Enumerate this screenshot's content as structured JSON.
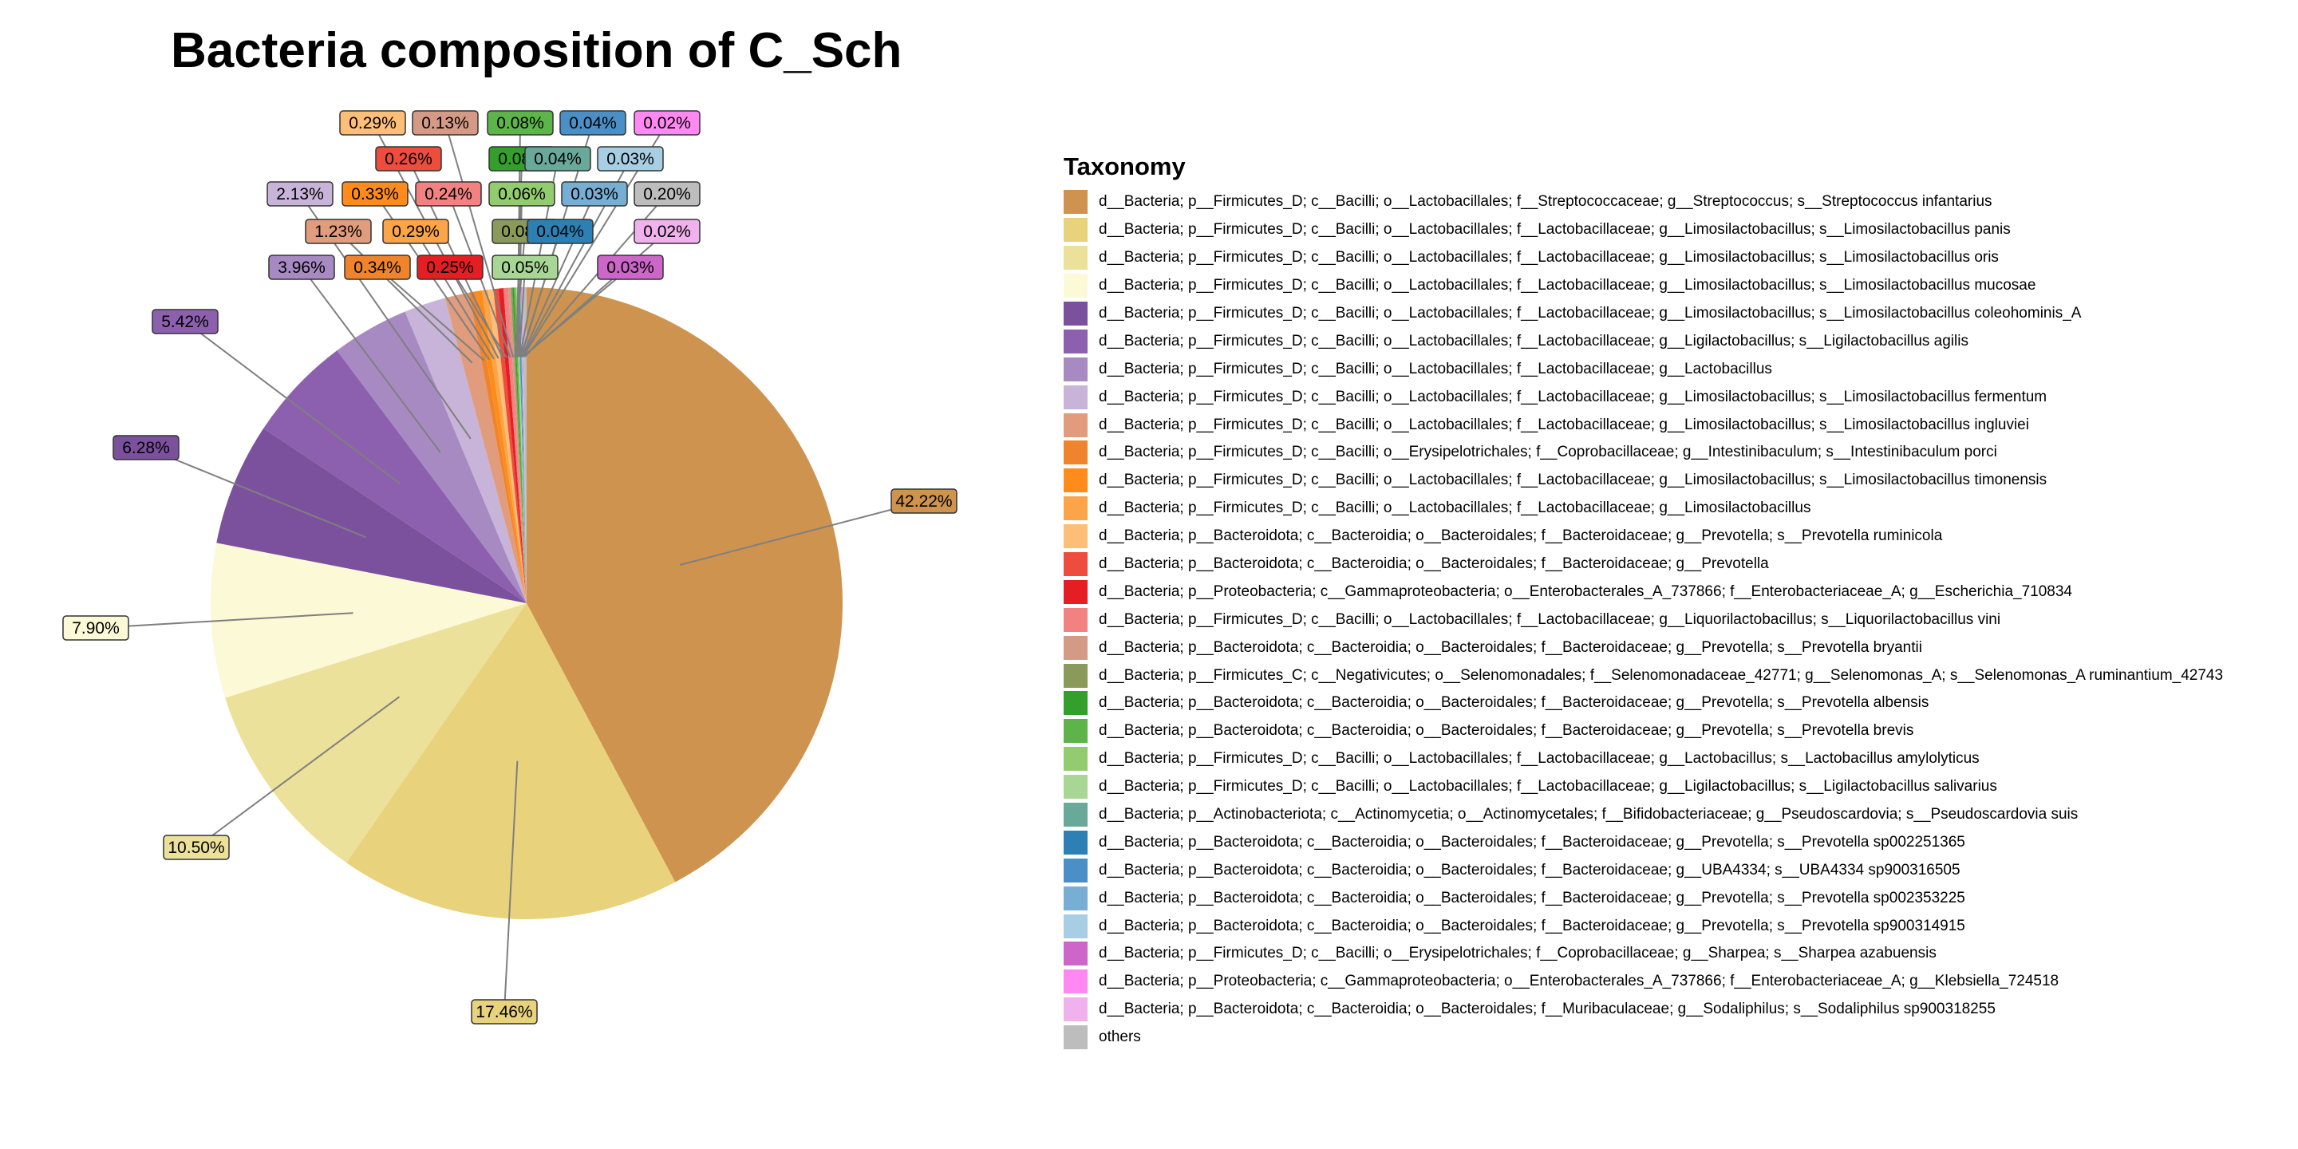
{
  "chart_data": {
    "type": "pie",
    "title": "Bacteria composition of C_Sch",
    "legend_title": "Taxonomy",
    "legend_position": "right",
    "slices": [
      {
        "label": "d__Bacteria; p__Firmicutes_D; c__Bacilli; o__Lactobacillales; f__Streptococcaceae; g__Streptococcus; s__Streptococcus infantarius",
        "value": 42.22,
        "display": "42.22%",
        "color": "#CD934F"
      },
      {
        "label": "d__Bacteria; p__Firmicutes_D; c__Bacilli; o__Lactobacillales; f__Lactobacillaceae; g__Limosilactobacillus; s__Limosilactobacillus panis",
        "value": 17.46,
        "display": "17.46%",
        "color": "#E8D27C"
      },
      {
        "label": "d__Bacteria; p__Firmicutes_D; c__Bacilli; o__Lactobacillales; f__Lactobacillaceae; g__Limosilactobacillus; s__Limosilactobacillus oris",
        "value": 10.5,
        "display": "10.50%",
        "color": "#EBE19A"
      },
      {
        "label": "d__Bacteria; p__Firmicutes_D; c__Bacilli; o__Lactobacillales; f__Lactobacillaceae; g__Limosilactobacillus; s__Limosilactobacillus mucosae",
        "value": 7.9,
        "display": "7.90%",
        "color": "#FBF9D6"
      },
      {
        "label": "d__Bacteria; p__Firmicutes_D; c__Bacilli; o__Lactobacillales; f__Lactobacillaceae; g__Limosilactobacillus; s__Limosilactobacillus coleohominis_A",
        "value": 6.28,
        "display": "6.28%",
        "color": "#7B519D"
      },
      {
        "label": "d__Bacteria; p__Firmicutes_D; c__Bacilli; o__Lactobacillales; f__Lactobacillaceae; g__Ligilactobacillus; s__Ligilactobacillus agilis",
        "value": 5.42,
        "display": "5.42%",
        "color": "#8C60AE"
      },
      {
        "label": "d__Bacteria; p__Firmicutes_D; c__Bacilli; o__Lactobacillales; f__Lactobacillaceae; g__Lactobacillus",
        "value": 3.96,
        "display": "3.96%",
        "color": "#A88AC3"
      },
      {
        "label": "d__Bacteria; p__Firmicutes_D; c__Bacilli; o__Lactobacillales; f__Lactobacillaceae; g__Limosilactobacillus; s__Limosilactobacillus fermentum",
        "value": 2.13,
        "display": "2.13%",
        "color": "#C8B4D8"
      },
      {
        "label": "d__Bacteria; p__Firmicutes_D; c__Bacilli; o__Lactobacillales; f__Lactobacillaceae; g__Limosilactobacillus; s__Limosilactobacillus ingluviei",
        "value": 1.23,
        "display": "1.23%",
        "color": "#E09C7C"
      },
      {
        "label": "d__Bacteria; p__Firmicutes_D; c__Bacilli; o__Erysipelotrichales; f__Coprobacillaceae; g__Intestinibaculum; s__Intestinibaculum porci",
        "value": 0.34,
        "display": "0.34%",
        "color": "#F0842C"
      },
      {
        "label": "d__Bacteria; p__Firmicutes_D; c__Bacilli; o__Lactobacillales; f__Lactobacillaceae; g__Limosilactobacillus; s__Limosilactobacillus timonensis",
        "value": 0.33,
        "display": "0.33%",
        "color": "#FF8C1A"
      },
      {
        "label": "d__Bacteria; p__Firmicutes_D; c__Bacilli; o__Lactobacillales; f__Lactobacillaceae; g__Limosilactobacillus",
        "value": 0.29,
        "display": "0.29%",
        "color": "#FBA448"
      },
      {
        "label": "d__Bacteria; p__Bacteroidota; c__Bacteroidia; o__Bacteroidales; f__Bacteroidaceae; g__Prevotella; s__Prevotella ruminicola",
        "value": 0.29,
        "display": "0.29%",
        "color": "#FDBE78"
      },
      {
        "label": "d__Bacteria; p__Bacteroidota; c__Bacteroidia; o__Bacteroidales; f__Bacteroidaceae; g__Prevotella",
        "value": 0.26,
        "display": "0.26%",
        "color": "#EE4C3C"
      },
      {
        "label": "d__Bacteria; p__Proteobacteria; c__Gammaproteobacteria; o__Enterobacterales_A_737866; f__Enterobacteriaceae_A; g__Escherichia_710834",
        "value": 0.25,
        "display": "0.25%",
        "color": "#E41E22"
      },
      {
        "label": "d__Bacteria; p__Firmicutes_D; c__Bacilli; o__Lactobacillales; f__Lactobacillaceae; g__Liquorilactobacillus; s__Liquorilactobacillus vini",
        "value": 0.24,
        "display": "0.24%",
        "color": "#F28282"
      },
      {
        "label": "d__Bacteria; p__Bacteroidota; c__Bacteroidia; o__Bacteroidales; f__Bacteroidaceae; g__Prevotella; s__Prevotella bryantii",
        "value": 0.13,
        "display": "0.13%",
        "color": "#D59A86"
      },
      {
        "label": "d__Bacteria; p__Firmicutes_C; c__Negativicutes; o__Selenomonadales; f__Selenomonadaceae_42771; g__Selenomonas_A; s__Selenomonas_A ruminantium_42743",
        "value": 0.08,
        "display": "0.08%",
        "color": "#8A9A5A"
      },
      {
        "label": "d__Bacteria; p__Bacteroidota; c__Bacteroidia; o__Bacteroidales; f__Bacteroidaceae; g__Prevotella; s__Prevotella albensis",
        "value": 0.08,
        "display": "0.08%",
        "color": "#33A02C"
      },
      {
        "label": "d__Bacteria; p__Bacteroidota; c__Bacteroidia; o__Bacteroidales; f__Bacteroidaceae; g__Prevotella; s__Prevotella brevis",
        "value": 0.08,
        "display": "0.08%",
        "color": "#5DB54A"
      },
      {
        "label": "d__Bacteria; p__Firmicutes_D; c__Bacilli; o__Lactobacillales; f__Lactobacillaceae; g__Lactobacillus; s__Lactobacillus amylolyticus",
        "value": 0.06,
        "display": "0.06%",
        "color": "#92CC6E"
      },
      {
        "label": "d__Bacteria; p__Firmicutes_D; c__Bacilli; o__Lactobacillales; f__Lactobacillaceae; g__Ligilactobacillus; s__Ligilactobacillus salivarius",
        "value": 0.05,
        "display": "0.05%",
        "color": "#A8D795"
      },
      {
        "label": "d__Bacteria; p__Actinobacteriota; c__Actinomycetia; o__Actinomycetales; f__Bifidobacteriaceae; g__Pseudoscardovia; s__Pseudoscardovia suis",
        "value": 0.04,
        "display": "0.04%",
        "color": "#69A99A"
      },
      {
        "label": "d__Bacteria; p__Bacteroidota; c__Bacteroidia; o__Bacteroidales; f__Bacteroidaceae; g__Prevotella; s__Prevotella sp002251365",
        "value": 0.04,
        "display": "0.04%",
        "color": "#2C80B4"
      },
      {
        "label": "d__Bacteria; p__Bacteroidota; c__Bacteroidia; o__Bacteroidales; f__Bacteroidaceae; g__UBA4334; s__UBA4334 sp900316505",
        "value": 0.04,
        "display": "0.04%",
        "color": "#4A90C6"
      },
      {
        "label": "d__Bacteria; p__Bacteroidota; c__Bacteroidia; o__Bacteroidales; f__Bacteroidaceae; g__Prevotella; s__Prevotella sp002353225",
        "value": 0.03,
        "display": "0.03%",
        "color": "#76AED4"
      },
      {
        "label": "d__Bacteria; p__Bacteroidota; c__Bacteroidia; o__Bacteroidales; f__Bacteroidaceae; g__Prevotella; s__Prevotella sp900314915",
        "value": 0.03,
        "display": "0.03%",
        "color": "#A8CEE4"
      },
      {
        "label": "d__Bacteria; p__Firmicutes_D; c__Bacilli; o__Erysipelotrichales; f__Coprobacillaceae; g__Sharpea; s__Sharpea azabuensis",
        "value": 0.03,
        "display": "0.03%",
        "color": "#CC66C8"
      },
      {
        "label": "d__Bacteria; p__Proteobacteria; c__Gammaproteobacteria; o__Enterobacterales_A_737866; f__Enterobacteriaceae_A; g__Klebsiella_724518",
        "value": 0.02,
        "display": "0.02%",
        "color": "#FF88F2"
      },
      {
        "label": "d__Bacteria; p__Bacteroidota; c__Bacteroidia; o__Bacteroidales; f__Muribaculaceae; g__Sodaliphilus; s__Sodaliphilus sp900318255",
        "value": 0.02,
        "display": "0.02%",
        "color": "#F0B2EC"
      },
      {
        "label": "others",
        "value": 0.2,
        "display": "0.20%",
        "color": "#BDBDBD"
      }
    ]
  }
}
